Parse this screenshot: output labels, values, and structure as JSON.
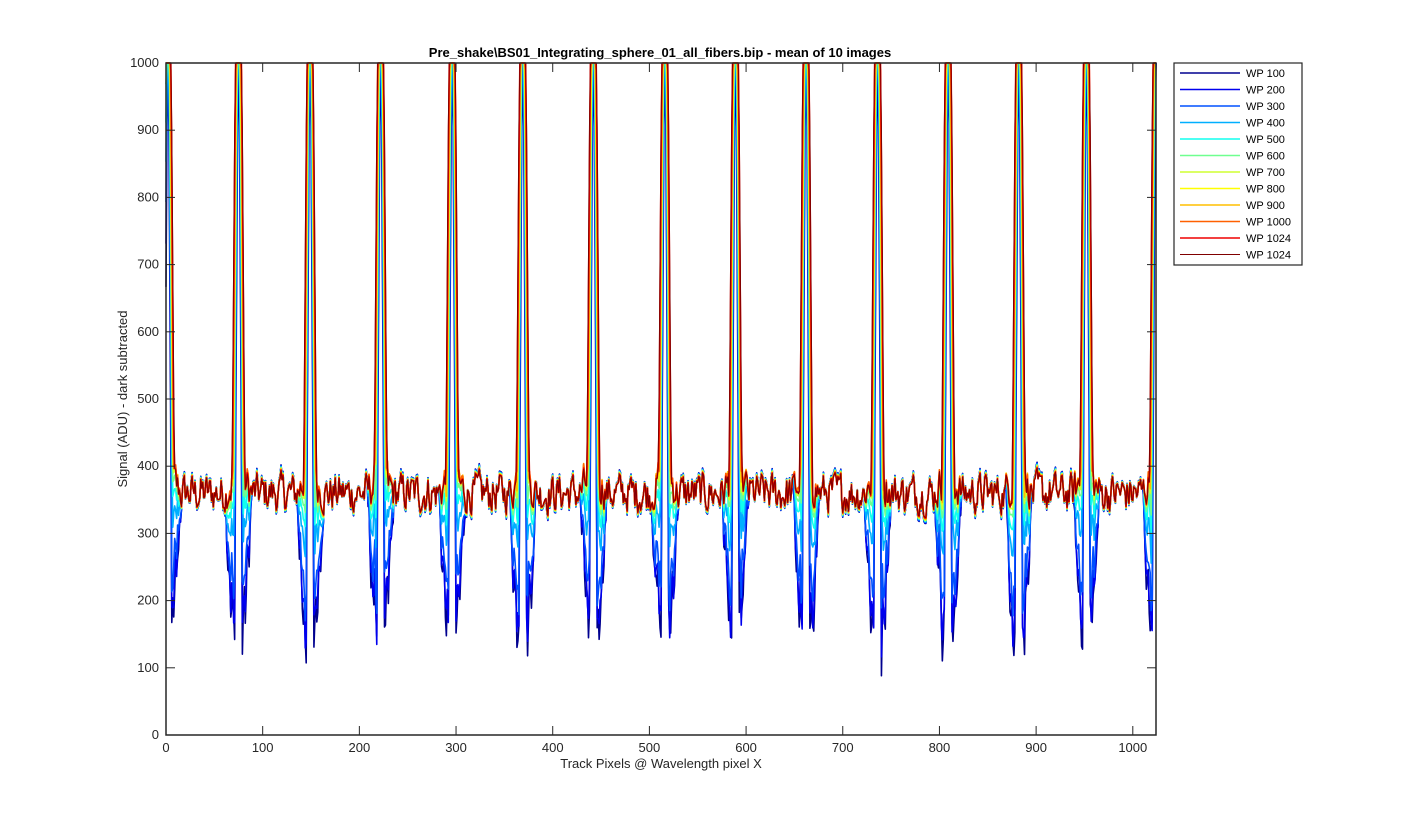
{
  "chart_data": {
    "type": "line",
    "title": "Pre_shake\\BS01_Integrating_sphere_01_all_fibers.bip - mean of 10 images",
    "xlabel": "Track Pixels @ Wavelength pixel X",
    "ylabel": "Signal (ADU) - dark subtracted",
    "xlim": [
      0,
      1024
    ],
    "ylim": [
      0,
      1000
    ],
    "xticks": [
      0,
      100,
      200,
      300,
      400,
      500,
      600,
      700,
      800,
      900,
      1000
    ],
    "yticks": [
      0,
      100,
      200,
      300,
      400,
      500,
      600,
      700,
      800,
      900,
      1000
    ],
    "grid": false,
    "legend_position": "outside-top-right",
    "fiber_peak_centers": [
      2,
      75,
      149,
      222,
      296,
      369,
      442,
      516,
      589,
      662,
      736,
      809,
      882,
      952,
      1024
    ],
    "baseline_level": 360,
    "series": [
      {
        "name": "WP 100",
        "color": "#00008f",
        "dip_min": 105,
        "peak_level": 1000
      },
      {
        "name": "WP 200",
        "color": "#0000ef",
        "dip_min": 125,
        "peak_level": 1000
      },
      {
        "name": "WP 300",
        "color": "#0050ff",
        "dip_min": 180,
        "peak_level": 1000
      },
      {
        "name": "WP 400",
        "color": "#00afff",
        "dip_min": 280,
        "peak_level": 1000
      },
      {
        "name": "WP 500",
        "color": "#10ffef",
        "dip_min": 330,
        "peak_level": 1000
      },
      {
        "name": "WP 600",
        "color": "#6fff8f",
        "dip_min": 360,
        "peak_level": 1000
      },
      {
        "name": "WP 700",
        "color": "#cfff30",
        "dip_min": 375,
        "peak_level": 1000
      },
      {
        "name": "WP 800",
        "color": "#ffff00",
        "dip_min": 385,
        "peak_level": 1000
      },
      {
        "name": "WP 900",
        "color": "#ffbf00",
        "dip_min": 390,
        "peak_level": 1000
      },
      {
        "name": "WP 1000",
        "color": "#ff6000",
        "dip_min": 390,
        "peak_level": 1000
      },
      {
        "name": "WP 1024",
        "color": "#ef0000",
        "dip_min": 380,
        "peak_level": 1000
      },
      {
        "name": "WP 1024",
        "color": "#800000",
        "dip_min": 380,
        "peak_level": 1000
      }
    ]
  }
}
